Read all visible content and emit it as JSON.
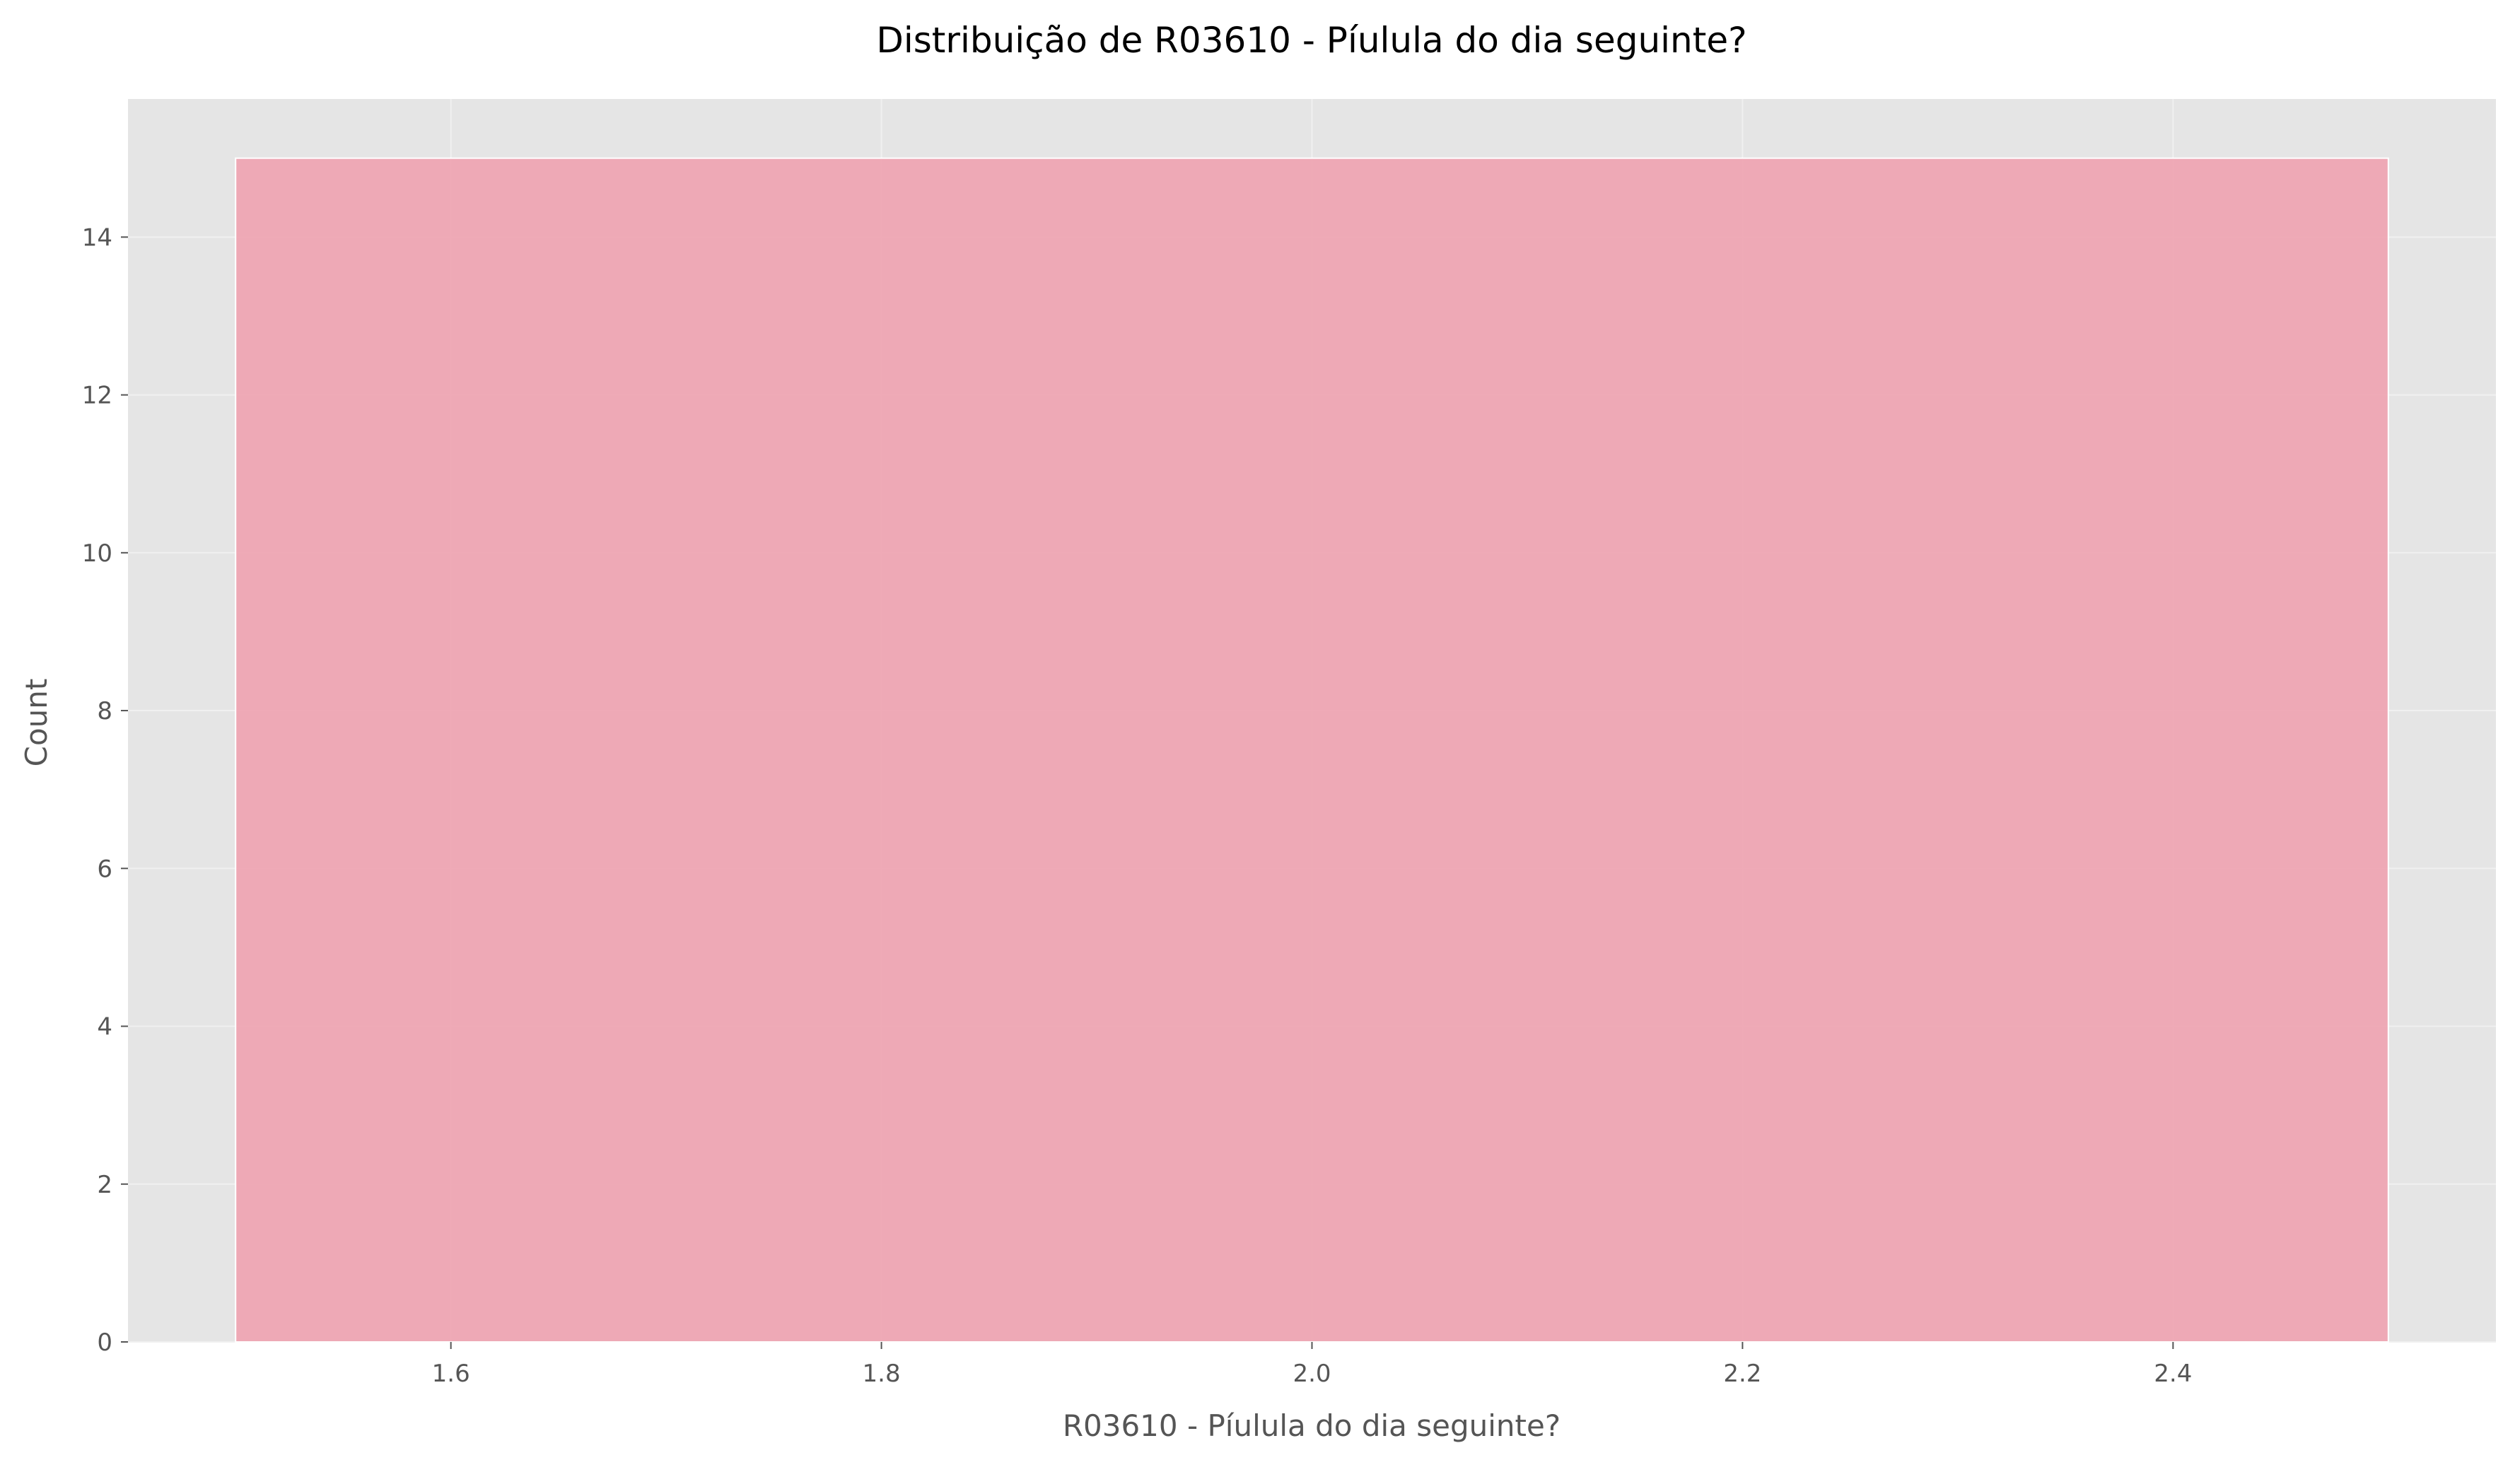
{
  "chart_data": {
    "type": "bar",
    "title": "Distribuição de R03610 - Píulula do dia seguinte?",
    "xlabel": "R03610 - Píulula do dia seguinte?",
    "ylabel": "Count",
    "bins": [
      {
        "x0": 1.5,
        "x1": 2.5,
        "count": 15
      }
    ],
    "xlim": [
      1.45,
      2.55
    ],
    "ylim": [
      0,
      15.75
    ],
    "xticks": [
      1.6,
      1.8,
      2.0,
      2.2,
      2.4
    ],
    "xtick_labels": [
      "1.6",
      "1.8",
      "2.0",
      "2.2",
      "2.4"
    ],
    "yticks": [
      0,
      2,
      4,
      6,
      8,
      10,
      12,
      14
    ],
    "ytick_labels": [
      "0",
      "2",
      "4",
      "6",
      "8",
      "10",
      "12",
      "14"
    ],
    "grid": true,
    "colors": {
      "bar_fill": "#eea2b0",
      "bar_edge": "#ffffff",
      "plot_background": "#e5e5e5",
      "grid": "#f0f0f0",
      "tick_label": "#555555"
    }
  }
}
